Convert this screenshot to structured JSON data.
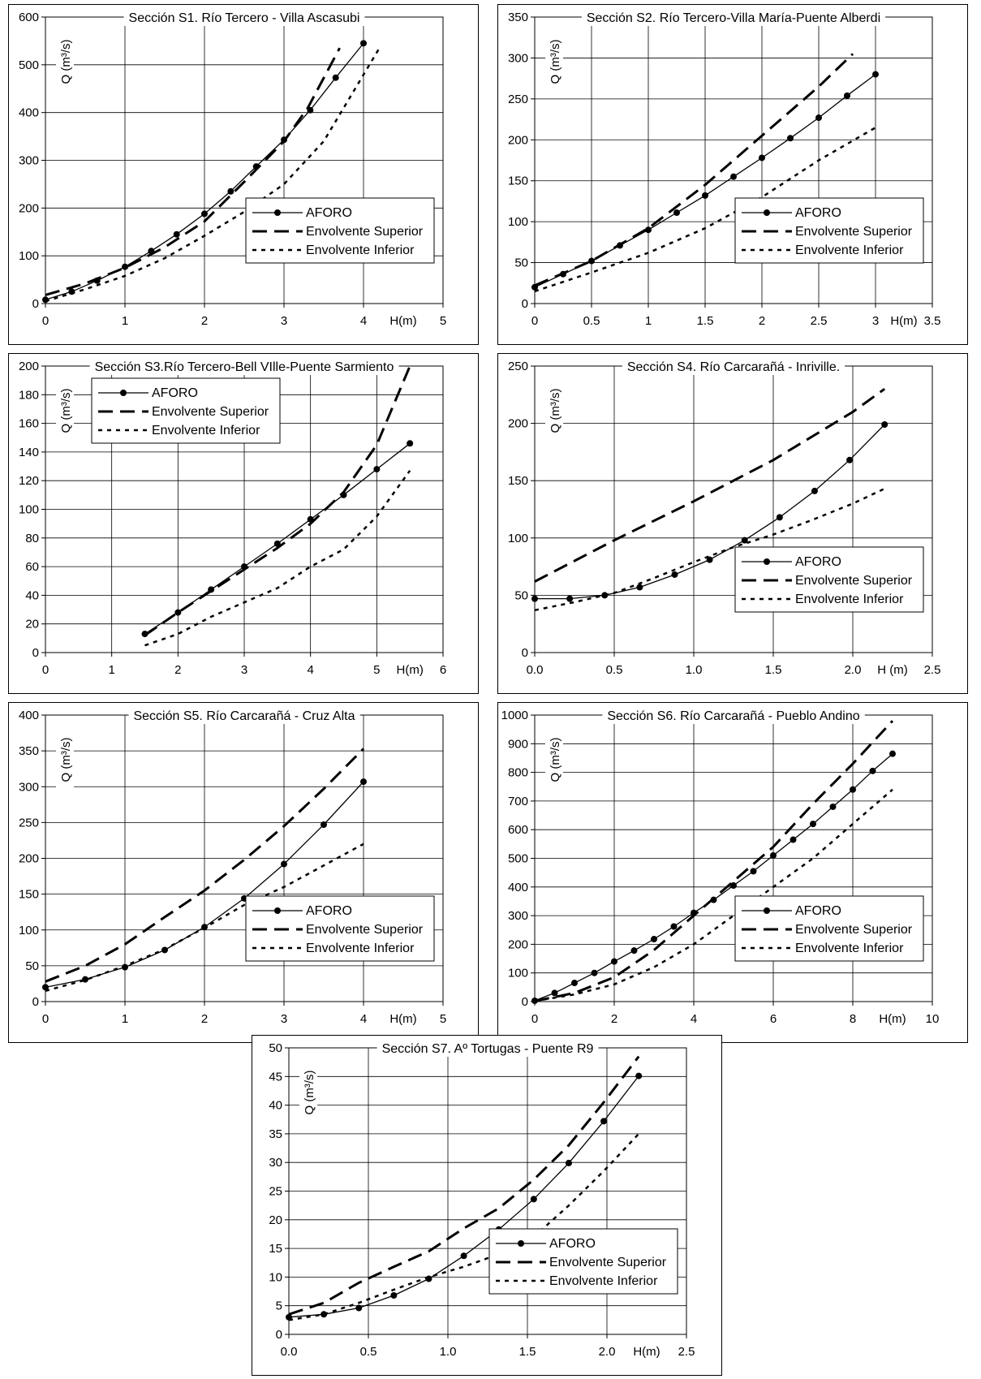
{
  "chart_data": [
    {
      "type": "line",
      "title": "Sección S1. Río Tercero - Villa Ascasubi",
      "ylabel": "Q (m³/s)",
      "xlabel": "H(m)",
      "xlim": [
        0,
        5
      ],
      "ylim": [
        0,
        600
      ],
      "xticks": [
        "0",
        "1",
        "2",
        "3",
        "4",
        "5"
      ],
      "yticks": [
        "0",
        "100",
        "200",
        "300",
        "400",
        "500",
        "600"
      ],
      "legend": {
        "position": "bottom-right",
        "entries": [
          "AFORO",
          "Envolvente Superior",
          "Envolvente Inferior"
        ]
      },
      "series": [
        {
          "name": "AFORO",
          "style": "solid-marker",
          "x": [
            0,
            0.33,
            0.65,
            1,
            1.33,
            1.65,
            2,
            2.33,
            2.65,
            3,
            3.33,
            3.65,
            4
          ],
          "y": [
            8,
            25,
            48,
            77,
            110,
            145,
            188,
            235,
            287,
            343,
            405,
            473,
            545
          ]
        },
        {
          "name": "Envolvente Superior",
          "style": "long-dash",
          "x": [
            0,
            0.5,
            1,
            1.5,
            2,
            2.5,
            3,
            3.3,
            3.7
          ],
          "y": [
            18,
            42,
            75,
            118,
            172,
            255,
            340,
            410,
            535
          ]
        },
        {
          "name": "Envolvente Inferior",
          "style": "dotted",
          "x": [
            0,
            0.5,
            1,
            1.5,
            2,
            2.5,
            3,
            3.5,
            4.2
          ],
          "y": [
            5,
            30,
            58,
            95,
            142,
            192,
            250,
            340,
            535
          ]
        }
      ]
    },
    {
      "type": "line",
      "title": "Sección S2. Río Tercero-Villa María-Puente Alberdi",
      "ylabel": "Q (m³/s)",
      "xlabel": "H(m)",
      "xlim": [
        0,
        3.5
      ],
      "ylim": [
        0,
        350
      ],
      "xticks": [
        "0",
        "0.5",
        "1",
        "1.5",
        "2",
        "2.5",
        "3",
        "3.5"
      ],
      "yticks": [
        "0",
        "50",
        "100",
        "150",
        "200",
        "250",
        "300",
        "350"
      ],
      "legend": {
        "position": "bottom-right",
        "entries": [
          "AFORO",
          "Envolvente Superior",
          "Envolvente Inferior"
        ]
      },
      "series": [
        {
          "name": "AFORO",
          "style": "solid-marker",
          "x": [
            0,
            0.25,
            0.5,
            0.75,
            1,
            1.25,
            1.5,
            1.75,
            2,
            2.25,
            2.5,
            2.75,
            3
          ],
          "y": [
            20,
            36,
            52,
            71,
            90,
            111,
            132,
            155,
            178,
            202,
            227,
            254,
            280
          ]
        },
        {
          "name": "Envolvente Superior",
          "style": "long-dash",
          "x": [
            0,
            0.5,
            1,
            1.5,
            2,
            2.5,
            2.8
          ],
          "y": [
            22,
            52,
            92,
            145,
            205,
            265,
            305
          ]
        },
        {
          "name": "Envolvente Inferior",
          "style": "dotted",
          "x": [
            0,
            0.5,
            1,
            1.5,
            2,
            2.5,
            3
          ],
          "y": [
            15,
            38,
            62,
            92,
            130,
            175,
            215
          ]
        }
      ]
    },
    {
      "type": "line",
      "title": "Sección S3.Río Tercero-Bell VIlle-Puente Sarmiento",
      "ylabel": "Q (m³/s)",
      "xlabel": "H(m)",
      "xlim": [
        0,
        6
      ],
      "ylim": [
        0,
        200
      ],
      "xticks": [
        "0",
        "1",
        "2",
        "3",
        "4",
        "5",
        "6"
      ],
      "yticks": [
        "0",
        "20",
        "40",
        "60",
        "80",
        "100",
        "120",
        "140",
        "160",
        "180",
        "200"
      ],
      "legend": {
        "position": "top-left",
        "entries": [
          "AFORO",
          "Envolvente Superior",
          "Envolvente Inferior"
        ]
      },
      "series": [
        {
          "name": "AFORO",
          "style": "solid-marker",
          "x": [
            1.5,
            2,
            2.5,
            3,
            3.5,
            4,
            4.5,
            5,
            5.5
          ],
          "y": [
            13,
            28,
            44,
            60,
            76,
            93,
            110,
            128,
            146
          ]
        },
        {
          "name": "Envolvente Superior",
          "style": "long-dash",
          "x": [
            1.5,
            2,
            2.5,
            3,
            3.5,
            4,
            4.5,
            5,
            5.5
          ],
          "y": [
            12,
            28,
            43,
            58,
            73,
            90,
            112,
            145,
            200
          ]
        },
        {
          "name": "Envolvente Inferior",
          "style": "dotted",
          "x": [
            1.5,
            2,
            2.5,
            3,
            3.5,
            4,
            4.5,
            5,
            5.5
          ],
          "y": [
            5,
            13,
            25,
            35,
            45,
            60,
            72,
            95,
            127
          ]
        }
      ]
    },
    {
      "type": "line",
      "title": "Sección S4. Río Carcarañá - Inriville.",
      "ylabel": "Q (m³/s)",
      "xlabel": "H (m)",
      "xlim": [
        0,
        2.5
      ],
      "ylim": [
        0,
        250
      ],
      "xticks": [
        "0.0",
        "0.5",
        "1.0",
        "1.5",
        "2.0",
        "2.5"
      ],
      "yticks": [
        "0",
        "50",
        "100",
        "150",
        "200",
        "250"
      ],
      "legend": {
        "position": "bottom-right",
        "entries": [
          "AFORO",
          "Envolvente Superior",
          "Envolvente Inferior"
        ]
      },
      "series": [
        {
          "name": "AFORO",
          "style": "solid-marker",
          "x": [
            0,
            0.22,
            0.44,
            0.66,
            0.88,
            1.1,
            1.32,
            1.54,
            1.76,
            1.98,
            2.2
          ],
          "y": [
            47,
            47,
            50,
            57,
            68,
            81,
            98,
            118,
            141,
            168,
            199
          ]
        },
        {
          "name": "Envolvente Superior",
          "style": "long-dash",
          "x": [
            0,
            0.5,
            1,
            1.5,
            2,
            2.2
          ],
          "y": [
            62,
            98,
            132,
            168,
            210,
            230
          ]
        },
        {
          "name": "Envolvente Inferior",
          "style": "dotted",
          "x": [
            0,
            0.25,
            0.5,
            0.75,
            1,
            1.25,
            1.5,
            1.75,
            2,
            2.2
          ],
          "y": [
            37,
            44,
            52,
            65,
            79,
            92,
            103,
            116,
            130,
            143
          ]
        }
      ]
    },
    {
      "type": "line",
      "title": "Sección S5. Río Carcarañá - Cruz Alta",
      "ylabel": "Q (m³/s)",
      "xlabel": "H(m)",
      "xlim": [
        0,
        5
      ],
      "ylim": [
        0,
        400
      ],
      "xticks": [
        "0",
        "1",
        "2",
        "3",
        "4",
        "5"
      ],
      "yticks": [
        "0",
        "50",
        "100",
        "150",
        "200",
        "250",
        "300",
        "350",
        "400"
      ],
      "legend": {
        "position": "bottom-right",
        "entries": [
          "AFORO",
          "Envolvente Superior",
          "Envolvente Inferior"
        ]
      },
      "series": [
        {
          "name": "AFORO",
          "style": "solid-marker",
          "x": [
            0,
            0.5,
            1,
            1.5,
            2,
            2.5,
            3,
            3.5,
            4
          ],
          "y": [
            20,
            31,
            48,
            72,
            104,
            144,
            192,
            247,
            307
          ]
        },
        {
          "name": "Envolvente Superior",
          "style": "long-dash",
          "x": [
            0,
            0.5,
            1,
            1.5,
            2,
            2.5,
            3,
            3.5,
            4
          ],
          "y": [
            28,
            50,
            80,
            118,
            155,
            198,
            245,
            297,
            353
          ]
        },
        {
          "name": "Envolvente Inferior",
          "style": "dotted",
          "x": [
            0,
            0.5,
            1,
            1.5,
            2,
            2.5,
            3,
            3.5,
            4
          ],
          "y": [
            15,
            30,
            50,
            73,
            103,
            135,
            160,
            190,
            220
          ]
        }
      ]
    },
    {
      "type": "line",
      "title": "Sección S6. Río Carcarañá - Pueblo Andino",
      "ylabel": "Q (m³/s)",
      "xlabel": "H(m)",
      "xlim": [
        0,
        10
      ],
      "ylim": [
        0,
        1000
      ],
      "xticks": [
        "0",
        "2",
        "4",
        "6",
        "8",
        "10"
      ],
      "yticks": [
        "0",
        "100",
        "200",
        "300",
        "400",
        "500",
        "600",
        "700",
        "800",
        "900",
        "1000"
      ],
      "legend": {
        "position": "bottom-right",
        "entries": [
          "AFORO",
          "Envolvente Superior",
          "Envolvente Inferior"
        ]
      },
      "series": [
        {
          "name": "AFORO",
          "style": "solid-marker",
          "x": [
            0,
            0.5,
            1,
            1.5,
            2,
            2.5,
            3,
            3.5,
            4,
            4.5,
            5,
            5.5,
            6,
            6.5,
            7,
            7.5,
            8,
            8.5,
            9
          ],
          "y": [
            3,
            30,
            65,
            100,
            140,
            178,
            218,
            262,
            310,
            355,
            405,
            455,
            510,
            565,
            620,
            680,
            740,
            805,
            865
          ]
        },
        {
          "name": "Envolvente Superior",
          "style": "long-dash",
          "x": [
            0,
            1,
            2,
            3,
            4,
            5,
            6,
            7,
            8,
            9
          ],
          "y": [
            2,
            30,
            85,
            180,
            300,
            420,
            540,
            690,
            830,
            980
          ]
        },
        {
          "name": "Envolvente Inferior",
          "style": "dotted",
          "x": [
            0,
            1,
            2,
            3,
            4,
            5,
            6,
            7,
            8,
            9
          ],
          "y": [
            2,
            25,
            60,
            120,
            200,
            300,
            400,
            500,
            620,
            740
          ]
        }
      ]
    },
    {
      "type": "line",
      "title": "Sección S7. Aº Tortugas - Puente R9",
      "ylabel": "Q (m³/s)",
      "xlabel": "H(m)",
      "xlim": [
        0,
        2.5
      ],
      "ylim": [
        0,
        50
      ],
      "xticks": [
        "0.0",
        "0.5",
        "1.0",
        "1.5",
        "2.0",
        "2.5"
      ],
      "yticks": [
        "0",
        "5",
        "10",
        "15",
        "20",
        "25",
        "30",
        "35",
        "40",
        "45",
        "50"
      ],
      "legend": {
        "position": "bottom-right",
        "entries": [
          "AFORO",
          "Envolvente Superior",
          "Envolvente Inferior"
        ]
      },
      "series": [
        {
          "name": "AFORO",
          "style": "solid-marker",
          "x": [
            0,
            0.22,
            0.44,
            0.66,
            0.88,
            1.1,
            1.32,
            1.54,
            1.76,
            1.98,
            2.2
          ],
          "y": [
            3,
            3.5,
            4.6,
            6.8,
            9.7,
            13.7,
            18.3,
            23.6,
            29.9,
            37.2,
            45.1
          ]
        },
        {
          "name": "Envolvente Superior",
          "style": "long-dash",
          "x": [
            0,
            0.22,
            0.44,
            0.66,
            0.88,
            1.1,
            1.32,
            1.54,
            1.76,
            1.98,
            2.2
          ],
          "y": [
            3.5,
            5.5,
            9,
            11.8,
            14.5,
            18.5,
            22,
            27,
            33,
            40.5,
            48.5
          ]
        },
        {
          "name": "Envolvente Inferior",
          "style": "dotted",
          "x": [
            0,
            0.22,
            0.44,
            0.66,
            0.88,
            1.1,
            1.32,
            1.54,
            1.76,
            1.98,
            2.2
          ],
          "y": [
            2.5,
            3.5,
            5.5,
            7.8,
            10,
            11.8,
            14,
            17,
            22.5,
            28.5,
            35
          ]
        }
      ]
    }
  ]
}
